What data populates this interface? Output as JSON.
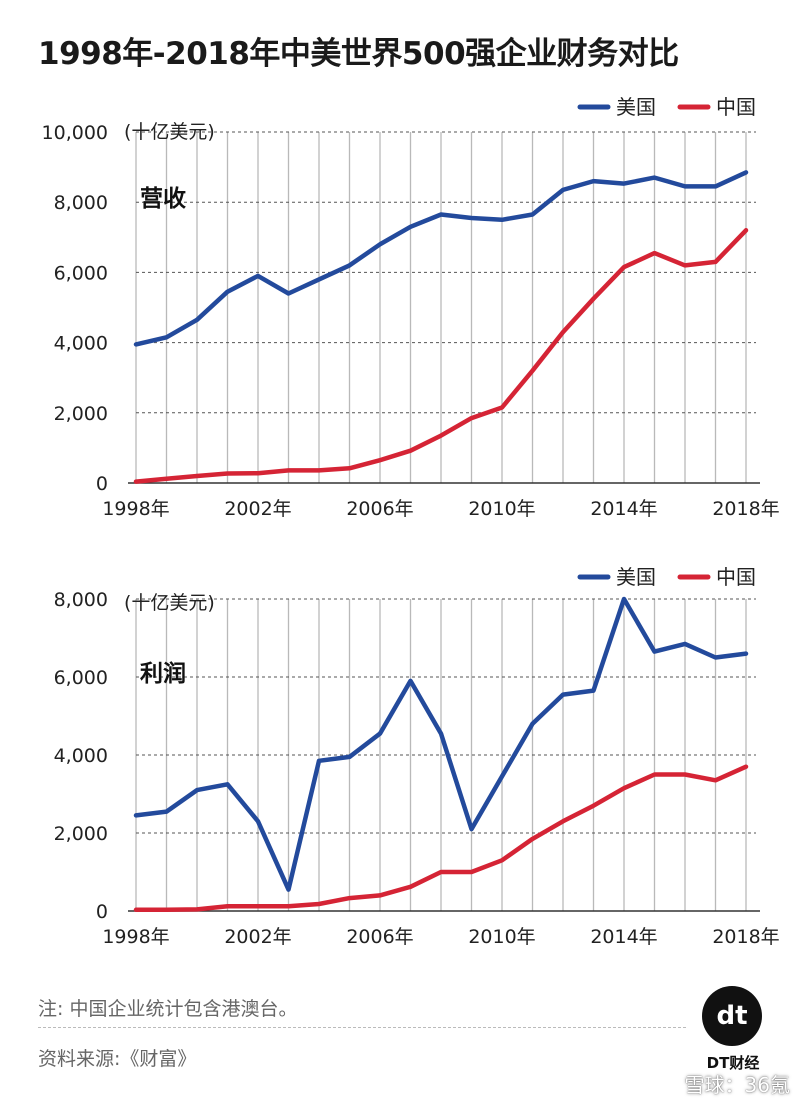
{
  "title": "1998年-2018年中美世界500强企业财务对比",
  "legend": {
    "us": "美国",
    "china": "中国"
  },
  "colors": {
    "us": "#234a9c",
    "china": "#d52435",
    "grid": "#999999",
    "axis": "#333333"
  },
  "chart_data": [
    {
      "type": "line",
      "label": "营收",
      "unit": "(十亿美元)",
      "x": [
        1998,
        1999,
        2000,
        2001,
        2002,
        2003,
        2004,
        2005,
        2006,
        2007,
        2008,
        2009,
        2010,
        2011,
        2012,
        2013,
        2014,
        2015,
        2016,
        2017,
        2018
      ],
      "xticks": [
        1998,
        2002,
        2006,
        2010,
        2014,
        2018
      ],
      "xtick_labels": [
        "1998年",
        "2002年",
        "2006年",
        "2010年",
        "2014年",
        "2018年"
      ],
      "yticks": [
        0,
        2000,
        4000,
        6000,
        8000,
        10000
      ],
      "ytick_labels": [
        "0",
        "2,000",
        "4,000",
        "6,000",
        "8,000",
        "10,000"
      ],
      "ylim": [
        0,
        10000
      ],
      "legend_position": "top-right",
      "series": [
        {
          "name": "美国",
          "color_key": "us",
          "values": [
            3950,
            4150,
            4650,
            5450,
            5900,
            5400,
            5800,
            6200,
            6800,
            7300,
            7650,
            7550,
            7500,
            7650,
            8350,
            8600,
            8530,
            8700,
            8450,
            8450,
            8850
          ]
        },
        {
          "name": "中国",
          "color_key": "china",
          "values": [
            40,
            120,
            200,
            270,
            280,
            360,
            360,
            420,
            650,
            920,
            1350,
            1850,
            2150,
            3200,
            4300,
            5250,
            6150,
            6550,
            6200,
            6300,
            7200
          ]
        }
      ]
    },
    {
      "type": "line",
      "label": "利润",
      "unit": "(十亿美元)",
      "x": [
        1998,
        1999,
        2000,
        2001,
        2002,
        2003,
        2004,
        2005,
        2006,
        2007,
        2008,
        2009,
        2010,
        2011,
        2012,
        2013,
        2014,
        2015,
        2016,
        2017,
        2018
      ],
      "xticks": [
        1998,
        2002,
        2006,
        2010,
        2014,
        2018
      ],
      "xtick_labels": [
        "1998年",
        "2002年",
        "2006年",
        "2010年",
        "2014年",
        "2018年"
      ],
      "yticks": [
        0,
        2000,
        4000,
        6000,
        8000
      ],
      "ytick_labels": [
        "0",
        "2,000",
        "4,000",
        "6,000",
        "8,000"
      ],
      "ylim": [
        0,
        8000
      ],
      "legend_position": "top-right",
      "series": [
        {
          "name": "美国",
          "color_key": "us",
          "values": [
            2450,
            2550,
            3100,
            3250,
            2300,
            550,
            3850,
            3950,
            4550,
            5900,
            4550,
            2100,
            3450,
            4800,
            5550,
            5650,
            8000,
            6650,
            6850,
            6500,
            6600
          ]
        },
        {
          "name": "中国",
          "color_key": "china",
          "values": [
            30,
            30,
            40,
            120,
            120,
            120,
            180,
            330,
            400,
            620,
            1000,
            1000,
            1300,
            1850,
            2300,
            2700,
            3150,
            3500,
            3500,
            3350,
            3700
          ]
        }
      ]
    }
  ],
  "footer": {
    "note": "注: 中国企业统计包含港澳台。",
    "source": "资料来源:《财富》"
  },
  "brand": {
    "logo_text": "dt",
    "name": "DT财经"
  },
  "watermark": "雪球：36氪"
}
